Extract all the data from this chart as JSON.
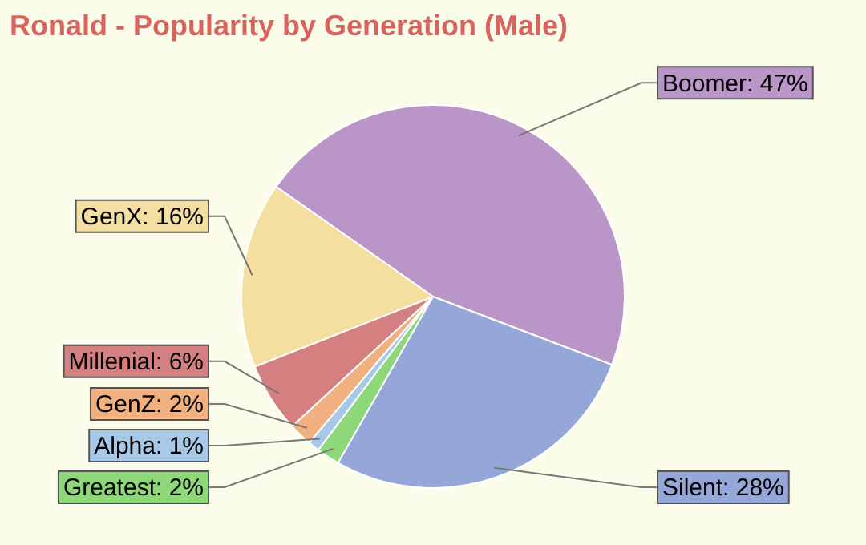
{
  "chart_data": {
    "type": "pie",
    "title": "Ronald - Popularity by Generation (Male)",
    "categories": [
      "Boomer",
      "Silent",
      "Greatest",
      "Alpha",
      "GenZ",
      "Millenial",
      "GenX"
    ],
    "values": [
      47,
      28,
      2,
      1,
      2,
      6,
      16
    ],
    "value_labels": [
      "47%",
      "28%",
      "2%",
      "1%",
      "2%",
      "6%",
      "16%"
    ],
    "colors": [
      "#b995c8",
      "#95a6d8",
      "#8ed87a",
      "#a8c8e8",
      "#f0b080",
      "#d48080",
      "#f5dfa0"
    ],
    "legend": false
  }
}
